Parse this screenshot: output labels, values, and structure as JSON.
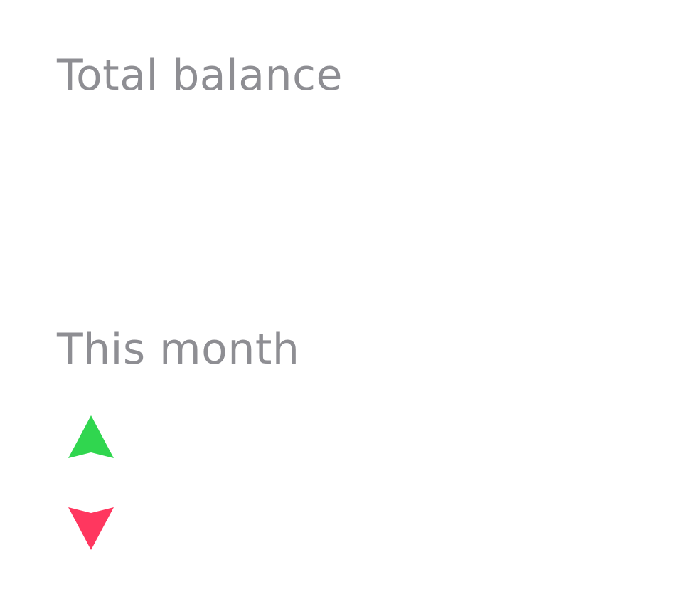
{
  "balance": {
    "label": "Total balance"
  },
  "month": {
    "label": "This month",
    "income_icon": "arrow-up-icon",
    "expense_icon": "arrow-down-icon"
  },
  "colors": {
    "label_text": "#8e8e93",
    "income": "#30d64f",
    "expense": "#ff375f"
  }
}
